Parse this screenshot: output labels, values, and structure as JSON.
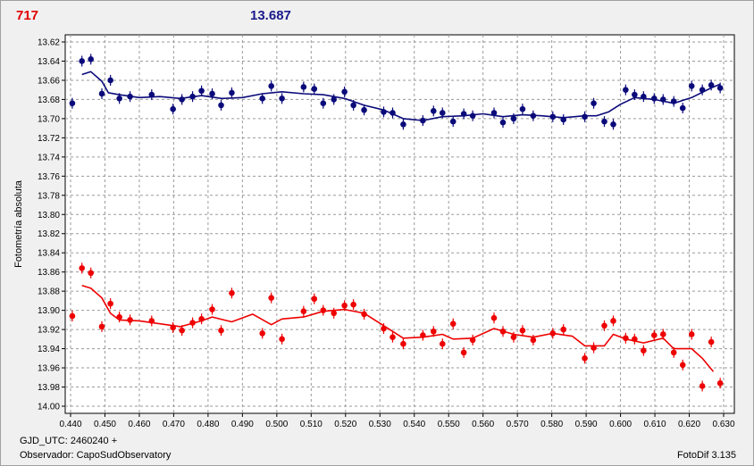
{
  "header": {
    "left_value": "717",
    "right_value": "13.687"
  },
  "footer": {
    "gjd_label": "GJD_UTC: 2460240 +",
    "observer_label": "Observador: CapoSudObservatory",
    "software": "FotoDif 3.135"
  },
  "chart_data": {
    "type": "scatter",
    "title": "",
    "xlabel": "",
    "ylabel": "Fotometría absoluta",
    "xlim": [
      0.44,
      0.63
    ],
    "ylim": [
      13.62,
      14.0
    ],
    "y_inverted": true,
    "grid": true,
    "x_ticks": [
      "0.440",
      "0.450",
      "0.460",
      "0.470",
      "0.480",
      "0.490",
      "0.500",
      "0.510",
      "0.520",
      "0.530",
      "0.540",
      "0.550",
      "0.560",
      "0.570",
      "0.580",
      "0.590",
      "0.600",
      "0.610",
      "0.620",
      "0.630"
    ],
    "y_ticks": [
      "13.62",
      "13.64",
      "13.66",
      "13.68",
      "13.70",
      "13.72",
      "13.74",
      "13.76",
      "13.78",
      "13.80",
      "13.82",
      "13.84",
      "13.86",
      "13.88",
      "13.90",
      "13.92",
      "13.94",
      "13.96",
      "13.98",
      "14.00"
    ],
    "colors": {
      "blue": "#0a0a7a",
      "red": "#ee0000"
    },
    "series": [
      {
        "color": "blue",
        "points": [
          [
            0.4405,
            13.684
          ],
          [
            0.4433,
            13.64
          ],
          [
            0.4459,
            13.638
          ],
          [
            0.4491,
            13.674
          ],
          [
            0.4516,
            13.66
          ],
          [
            0.4542,
            13.679
          ],
          [
            0.4573,
            13.677
          ],
          [
            0.4636,
            13.675
          ],
          [
            0.4698,
            13.69
          ],
          [
            0.4724,
            13.68
          ],
          [
            0.4755,
            13.677
          ],
          [
            0.4781,
            13.671
          ],
          [
            0.4812,
            13.674
          ],
          [
            0.4838,
            13.686
          ],
          [
            0.4869,
            13.673
          ],
          [
            0.4958,
            13.679
          ],
          [
            0.4984,
            13.666
          ],
          [
            0.5015,
            13.679
          ],
          [
            0.5078,
            13.667
          ],
          [
            0.5109,
            13.669
          ],
          [
            0.5135,
            13.684
          ],
          [
            0.5166,
            13.68
          ],
          [
            0.5197,
            13.672
          ],
          [
            0.5223,
            13.686
          ],
          [
            0.5254,
            13.691
          ],
          [
            0.5311,
            13.693
          ],
          [
            0.5337,
            13.694
          ],
          [
            0.5368,
            13.706
          ],
          [
            0.5425,
            13.702
          ],
          [
            0.5456,
            13.692
          ],
          [
            0.5482,
            13.694
          ],
          [
            0.5513,
            13.703
          ],
          [
            0.5544,
            13.695
          ],
          [
            0.557,
            13.697
          ],
          [
            0.5632,
            13.694
          ],
          [
            0.5658,
            13.704
          ],
          [
            0.5689,
            13.7
          ],
          [
            0.5715,
            13.69
          ],
          [
            0.5746,
            13.697
          ],
          [
            0.5803,
            13.698
          ],
          [
            0.5834,
            13.701
          ],
          [
            0.5896,
            13.698
          ],
          [
            0.5922,
            13.684
          ],
          [
            0.5953,
            13.703
          ],
          [
            0.5979,
            13.706
          ],
          [
            0.6015,
            13.67
          ],
          [
            0.6041,
            13.675
          ],
          [
            0.6067,
            13.677
          ],
          [
            0.6098,
            13.679
          ],
          [
            0.6124,
            13.68
          ],
          [
            0.6155,
            13.682
          ],
          [
            0.6181,
            13.689
          ],
          [
            0.6207,
            13.666
          ],
          [
            0.6238,
            13.67
          ],
          [
            0.6264,
            13.665
          ],
          [
            0.629,
            13.668
          ]
        ],
        "trend": [
          [
            0.4433,
            13.654
          ],
          [
            0.4459,
            13.651
          ],
          [
            0.4491,
            13.661
          ],
          [
            0.451,
            13.673
          ],
          [
            0.4542,
            13.675
          ],
          [
            0.46,
            13.678
          ],
          [
            0.466,
            13.677
          ],
          [
            0.472,
            13.679
          ],
          [
            0.4781,
            13.676
          ],
          [
            0.484,
            13.679
          ],
          [
            0.49,
            13.678
          ],
          [
            0.4958,
            13.674
          ],
          [
            0.5015,
            13.672
          ],
          [
            0.5078,
            13.674
          ],
          [
            0.5135,
            13.675
          ],
          [
            0.5197,
            13.679
          ],
          [
            0.5254,
            13.686
          ],
          [
            0.5311,
            13.691
          ],
          [
            0.5368,
            13.7
          ],
          [
            0.5425,
            13.702
          ],
          [
            0.5482,
            13.698
          ],
          [
            0.5544,
            13.697
          ],
          [
            0.56,
            13.695
          ],
          [
            0.5658,
            13.698
          ],
          [
            0.5715,
            13.696
          ],
          [
            0.577,
            13.697
          ],
          [
            0.5834,
            13.699
          ],
          [
            0.5896,
            13.697
          ],
          [
            0.593,
            13.697
          ],
          [
            0.5965,
            13.693
          ],
          [
            0.6,
            13.685
          ],
          [
            0.6041,
            13.678
          ],
          [
            0.6098,
            13.68
          ],
          [
            0.6155,
            13.684
          ],
          [
            0.6207,
            13.678
          ],
          [
            0.6264,
            13.668
          ],
          [
            0.629,
            13.664
          ]
        ]
      },
      {
        "color": "red",
        "points": [
          [
            0.4405,
            13.906
          ],
          [
            0.4433,
            13.856
          ],
          [
            0.4459,
            13.861
          ],
          [
            0.4491,
            13.917
          ],
          [
            0.4516,
            13.893
          ],
          [
            0.4542,
            13.907
          ],
          [
            0.4573,
            13.91
          ],
          [
            0.4636,
            13.911
          ],
          [
            0.4698,
            13.918
          ],
          [
            0.4724,
            13.921
          ],
          [
            0.4755,
            13.913
          ],
          [
            0.4781,
            13.909
          ],
          [
            0.4812,
            13.899
          ],
          [
            0.4838,
            13.921
          ],
          [
            0.4869,
            13.882
          ],
          [
            0.4958,
            13.924
          ],
          [
            0.4984,
            13.887
          ],
          [
            0.5015,
            13.93
          ],
          [
            0.5078,
            13.901
          ],
          [
            0.5109,
            13.888
          ],
          [
            0.5135,
            13.9
          ],
          [
            0.5166,
            13.903
          ],
          [
            0.5197,
            13.895
          ],
          [
            0.5223,
            13.894
          ],
          [
            0.5254,
            13.904
          ],
          [
            0.5311,
            13.919
          ],
          [
            0.5337,
            13.928
          ],
          [
            0.5368,
            13.935
          ],
          [
            0.5425,
            13.926
          ],
          [
            0.5456,
            13.922
          ],
          [
            0.5482,
            13.935
          ],
          [
            0.5513,
            13.914
          ],
          [
            0.5544,
            13.944
          ],
          [
            0.557,
            13.931
          ],
          [
            0.5632,
            13.908
          ],
          [
            0.5658,
            13.922
          ],
          [
            0.5689,
            13.928
          ],
          [
            0.5715,
            13.921
          ],
          [
            0.5746,
            13.931
          ],
          [
            0.5803,
            13.924
          ],
          [
            0.5834,
            13.92
          ],
          [
            0.5896,
            13.95
          ],
          [
            0.5922,
            13.939
          ],
          [
            0.5953,
            13.916
          ],
          [
            0.5979,
            13.911
          ],
          [
            0.6015,
            13.929
          ],
          [
            0.6041,
            13.93
          ],
          [
            0.6067,
            13.942
          ],
          [
            0.6098,
            13.926
          ],
          [
            0.6124,
            13.925
          ],
          [
            0.6155,
            13.944
          ],
          [
            0.6181,
            13.957
          ],
          [
            0.6207,
            13.925
          ],
          [
            0.6238,
            13.979
          ],
          [
            0.6264,
            13.933
          ],
          [
            0.629,
            13.976
          ]
        ],
        "trend": [
          [
            0.4433,
            13.874
          ],
          [
            0.4459,
            13.877
          ],
          [
            0.4491,
            13.887
          ],
          [
            0.4516,
            13.903
          ],
          [
            0.4542,
            13.91
          ],
          [
            0.46,
            13.911
          ],
          [
            0.466,
            13.914
          ],
          [
            0.472,
            13.917
          ],
          [
            0.4781,
            13.911
          ],
          [
            0.4812,
            13.907
          ],
          [
            0.4869,
            13.912
          ],
          [
            0.493,
            13.904
          ],
          [
            0.4984,
            13.915
          ],
          [
            0.5015,
            13.909
          ],
          [
            0.5078,
            13.907
          ],
          [
            0.5135,
            13.901
          ],
          [
            0.5197,
            13.899
          ],
          [
            0.5254,
            13.903
          ],
          [
            0.5311,
            13.916
          ],
          [
            0.5368,
            13.929
          ],
          [
            0.5425,
            13.928
          ],
          [
            0.5482,
            13.925
          ],
          [
            0.5513,
            13.93
          ],
          [
            0.557,
            13.929
          ],
          [
            0.5632,
            13.919
          ],
          [
            0.5689,
            13.925
          ],
          [
            0.5746,
            13.928
          ],
          [
            0.5803,
            13.924
          ],
          [
            0.586,
            13.927
          ],
          [
            0.5896,
            13.937
          ],
          [
            0.5953,
            13.937
          ],
          [
            0.5979,
            13.925
          ],
          [
            0.6015,
            13.93
          ],
          [
            0.6067,
            13.934
          ],
          [
            0.6124,
            13.929
          ],
          [
            0.6155,
            13.94
          ],
          [
            0.6207,
            13.94
          ],
          [
            0.6238,
            13.95
          ],
          [
            0.627,
            13.964
          ]
        ]
      }
    ]
  }
}
